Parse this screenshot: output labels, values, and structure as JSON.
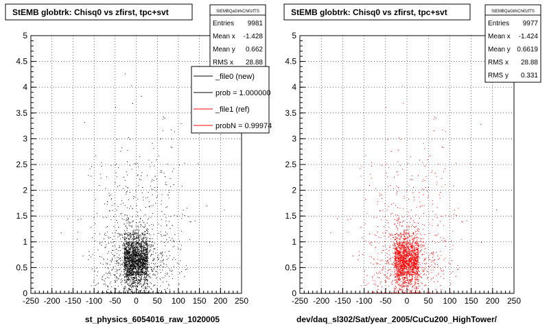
{
  "chart_data": [
    {
      "type": "scatter",
      "title": "StEMB globtrk: Chisq0 vs zfirst, tpc+svt",
      "xlim": [
        -250,
        250
      ],
      "ylim": [
        0,
        5
      ],
      "xticks": [
        "-250",
        "-200",
        "-150",
        "-100",
        "-50",
        "0",
        "50",
        "100",
        "150",
        "200",
        "250"
      ],
      "yticks": [
        "0",
        "0.5",
        "1",
        "1.5",
        "2",
        "2.5",
        "3",
        "3.5",
        "4",
        "4.5",
        "5"
      ],
      "grid": true,
      "xlabel": "st_physics_6054016_raw_1020005",
      "color": "#000000",
      "stats": {
        "name": "StEMBQaGtrkChi0zfTS",
        "rows": [
          {
            "label": "Entries",
            "value": "9981"
          },
          {
            "label": "Mean x",
            "value": "-1.428"
          },
          {
            "label": "Mean y",
            "value": "0.662"
          },
          {
            "label": "RMS x",
            "value": "28.88"
          }
        ]
      },
      "legend": [
        {
          "label": "_file0 (new)",
          "color": "#000000"
        },
        {
          "label": "prob = 1.000000",
          "color": "#000000"
        },
        {
          "label": "_file1 (ref)",
          "color": "#ff0000"
        },
        {
          "label": "probN = 0.99974",
          "color": "#ff0000"
        }
      ],
      "distribution": {
        "x_mean": -1.428,
        "x_rms": 28.88,
        "y_mean": 0.662,
        "entries": 9981
      }
    },
    {
      "type": "scatter",
      "title": "StEMB globtrk: Chisq0 vs zfirst, tpc+svt",
      "xlim": [
        -250,
        250
      ],
      "ylim": [
        0,
        5
      ],
      "xticks": [
        "-250",
        "-200",
        "-150",
        "-100",
        "-50",
        "0",
        "50",
        "100",
        "150",
        "200",
        "250"
      ],
      "yticks": [
        "0",
        "0.5",
        "1",
        "1.5",
        "2",
        "2.5",
        "3",
        "3.5",
        "4",
        "4.5",
        "5"
      ],
      "grid": true,
      "xlabel": "dev/daq_sl302/Sat/year_2005/CuCu200_HighTower/",
      "color": "#ff0000",
      "stats": {
        "name": "StEMBQaGtrkChi0zfTS",
        "rows": [
          {
            "label": "Entries",
            "value": "9977"
          },
          {
            "label": "Mean x",
            "value": "-1.424"
          },
          {
            "label": "Mean y",
            "value": "0.6619"
          },
          {
            "label": "RMS x",
            "value": "28.88"
          },
          {
            "label": "RMS y",
            "value": "0.331"
          }
        ]
      },
      "distribution": {
        "x_mean": -1.424,
        "x_rms": 28.88,
        "y_mean": 0.6619,
        "y_rms": 0.331,
        "entries": 9977
      }
    }
  ]
}
